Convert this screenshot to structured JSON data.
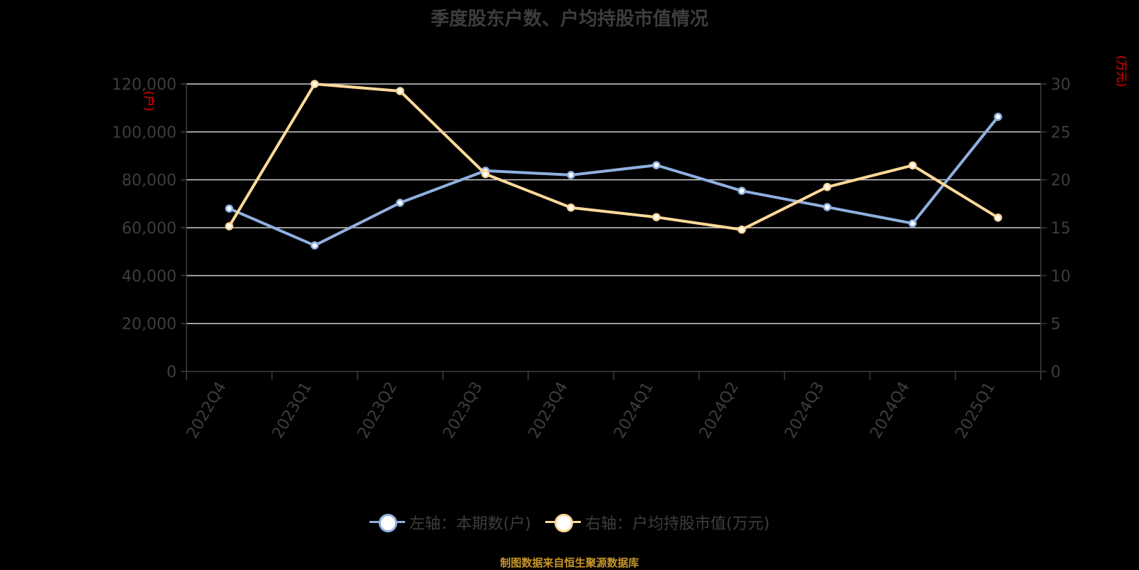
{
  "title": "季度股东户数、户均持股市值情况",
  "source": "制图数据来自恒生聚源数据库",
  "legend": {
    "left": "左轴：本期数(户)",
    "right": "右轴：户均持股市值(万元)"
  },
  "axis_units": {
    "left": "(户)",
    "right": "(万元)"
  },
  "colors": {
    "background": "#000000",
    "series_left": "#8fb0e0",
    "series_right": "#ffd99a",
    "grid": "#d0d0d0",
    "axis": "#3d3d3d",
    "axis_label": "#ff0000",
    "source": "#c8962a"
  },
  "chart_data": {
    "type": "line",
    "title": "季度股东户数、户均持股市值情况",
    "categories": [
      "2022Q4",
      "2023Q1",
      "2023Q2",
      "2023Q3",
      "2023Q4",
      "2024Q1",
      "2024Q2",
      "2024Q3",
      "2024Q4",
      "2025Q1"
    ],
    "series": [
      {
        "name": "左轴：本期数(户)",
        "axis": "left",
        "values": [
          68000,
          52600,
          70400,
          83800,
          82000,
          86100,
          75400,
          68600,
          61800,
          106300
        ]
      },
      {
        "name": "右轴：户均持股市值(万元)",
        "axis": "right",
        "values": [
          15.15,
          30.0,
          29.26,
          20.6,
          17.1,
          16.1,
          14.8,
          19.25,
          21.5,
          16.05
        ]
      }
    ],
    "y_left": {
      "label": "(户)",
      "ticks": [
        "0",
        "20,000",
        "40,000",
        "60,000",
        "80,000",
        "100,000",
        "120,000"
      ],
      "range": [
        0,
        120000
      ]
    },
    "y_right": {
      "label": "(万元)",
      "ticks": [
        "0",
        "5",
        "10",
        "15",
        "20",
        "25",
        "30"
      ],
      "range": [
        0,
        30
      ]
    },
    "grid": true,
    "legend_position": "bottom"
  }
}
